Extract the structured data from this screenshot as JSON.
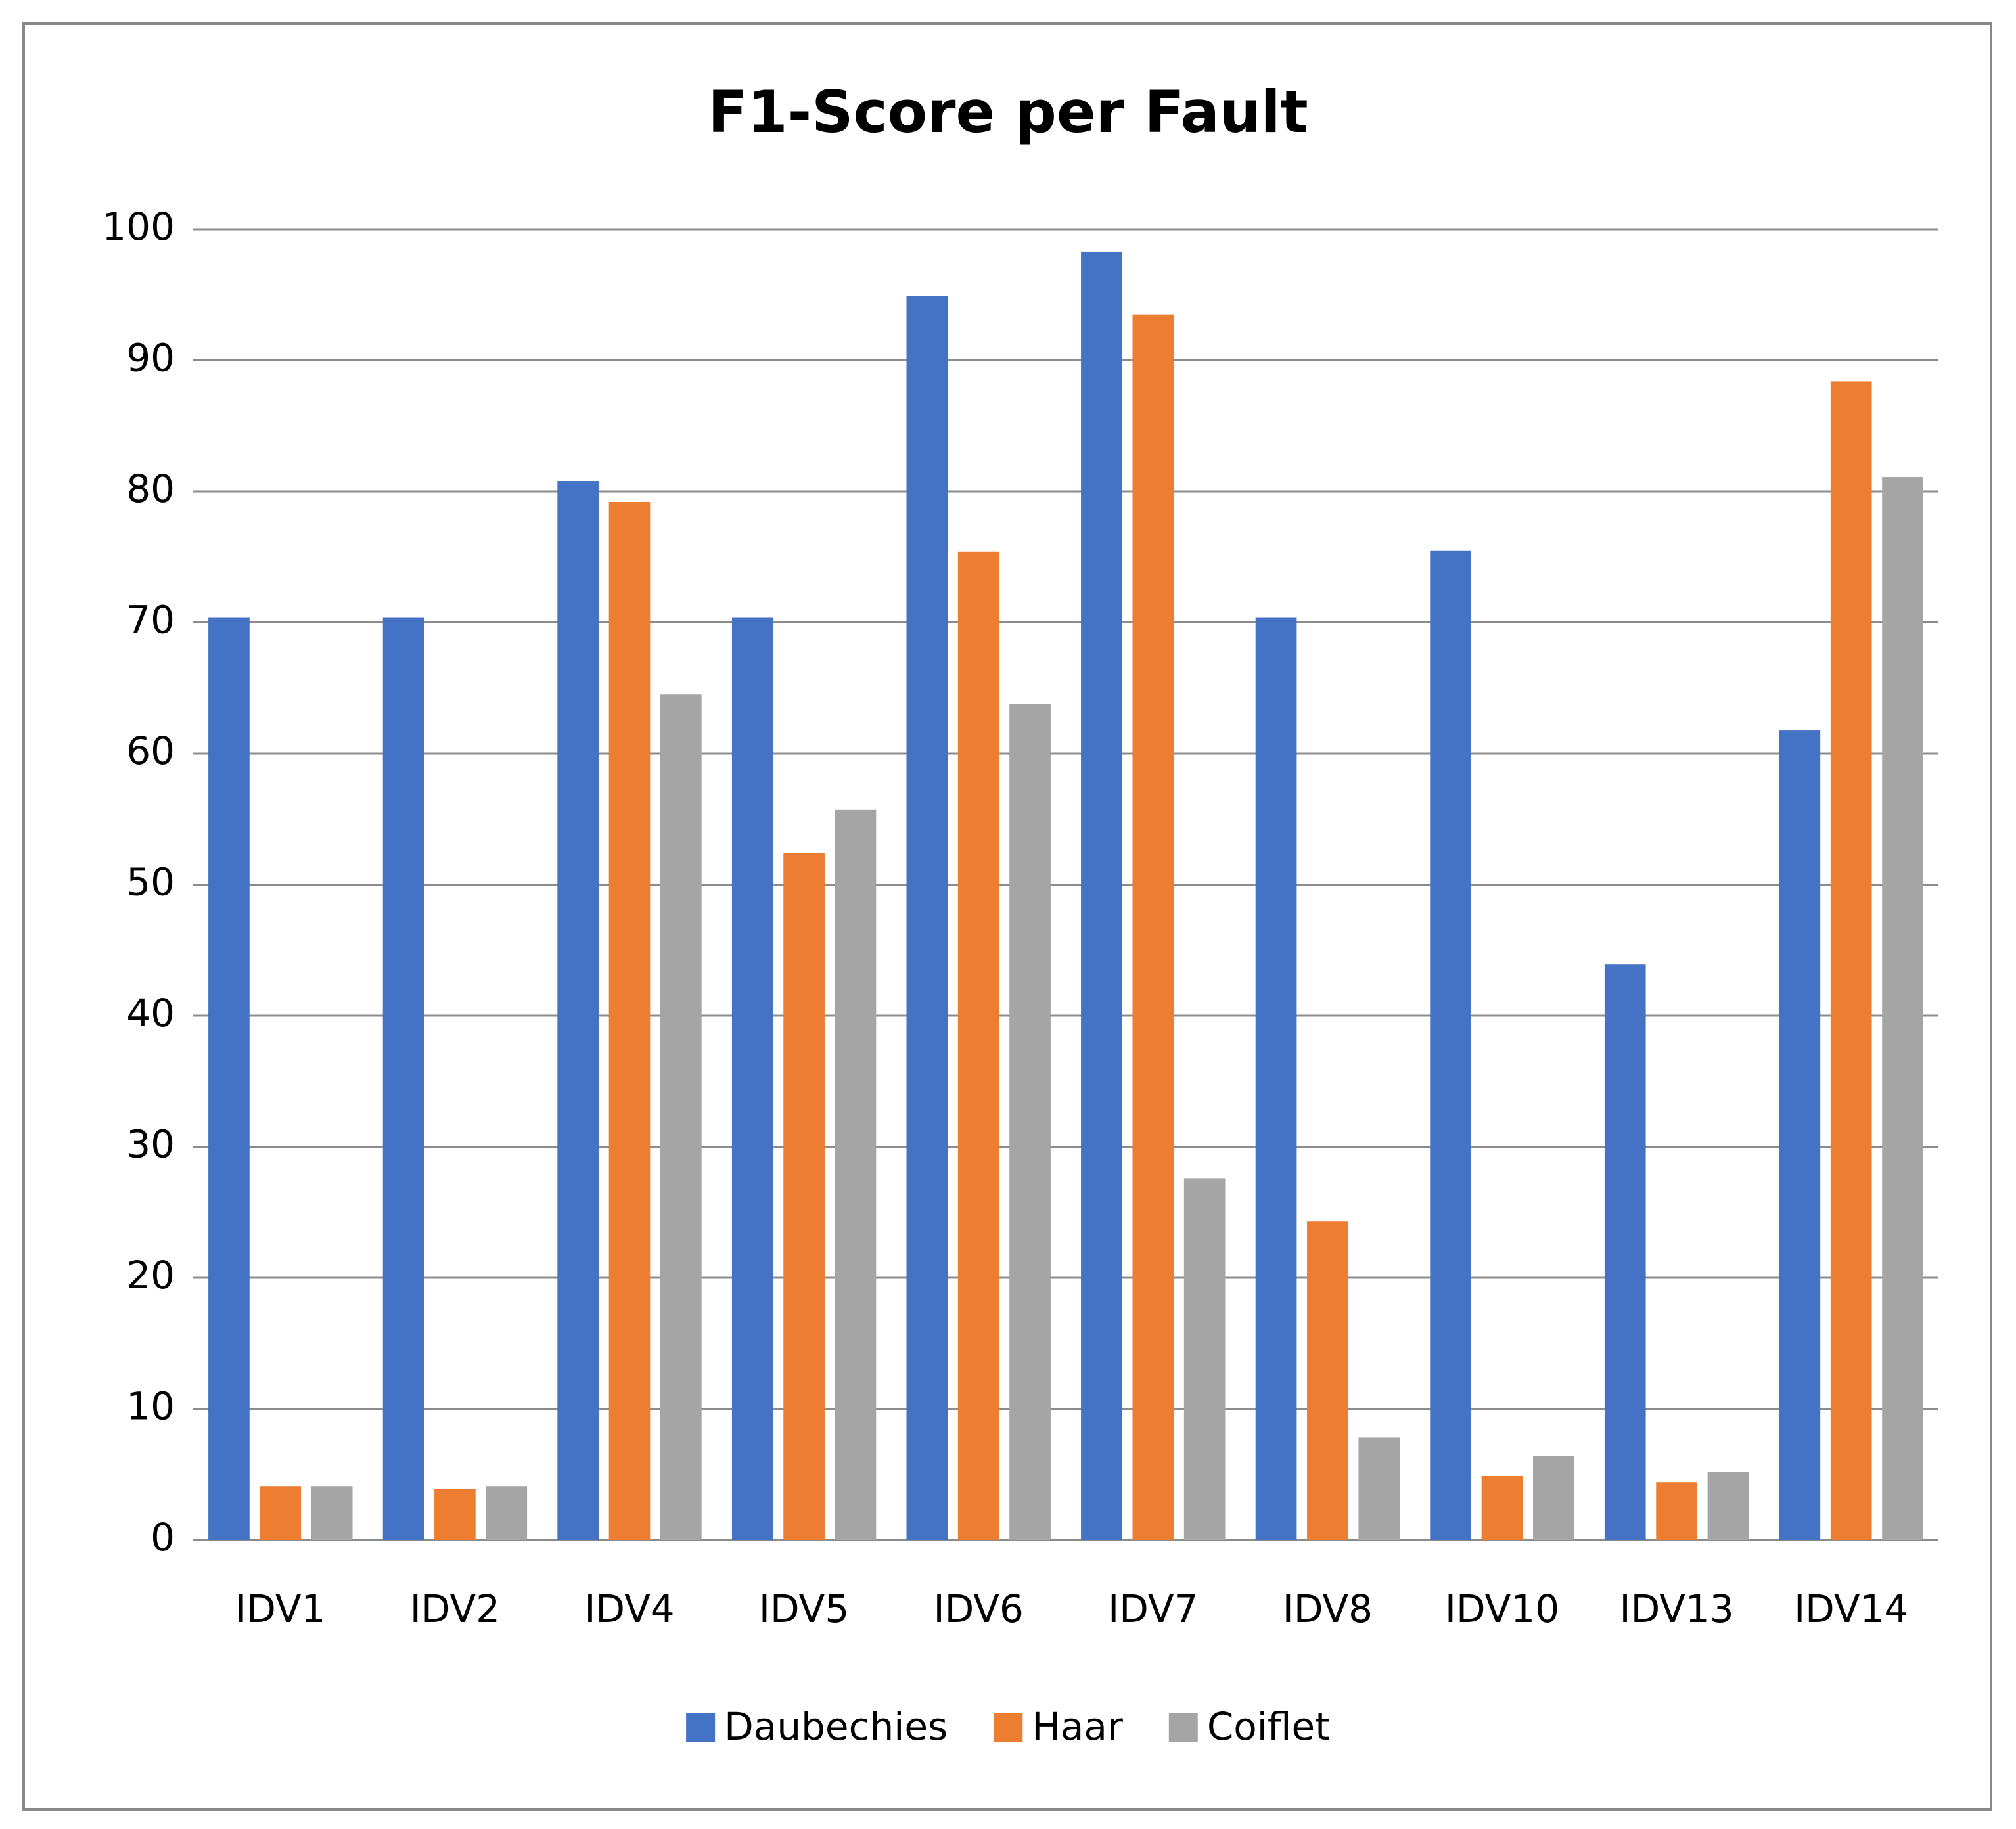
{
  "chart_data": {
    "type": "bar",
    "title": "F1-Score per Fault",
    "categories": [
      "IDV1",
      "IDV2",
      "IDV4",
      "IDV5",
      "IDV6",
      "IDV7",
      "IDV8",
      "IDV10",
      "IDV13",
      "IDV14"
    ],
    "series": [
      {
        "name": "Daubechies",
        "color": "#4472c4",
        "values": [
          70.4,
          70.4,
          80.8,
          70.4,
          94.9,
          98.3,
          70.4,
          75.5,
          43.9,
          61.8
        ]
      },
      {
        "name": "Haar",
        "color": "#ed7d31",
        "values": [
          4.1,
          3.9,
          79.2,
          52.4,
          75.4,
          93.5,
          24.3,
          4.9,
          4.4,
          88.4
        ]
      },
      {
        "name": "Coiflet",
        "color": "#a5a5a5",
        "values": [
          4.1,
          4.1,
          64.5,
          55.7,
          63.8,
          27.6,
          7.8,
          6.4,
          5.2,
          81.1
        ]
      }
    ],
    "ylim": [
      0,
      100
    ],
    "yticks": [
      0,
      10,
      20,
      30,
      40,
      50,
      60,
      70,
      80,
      90,
      100
    ],
    "grid": true,
    "legend": "bottom"
  }
}
